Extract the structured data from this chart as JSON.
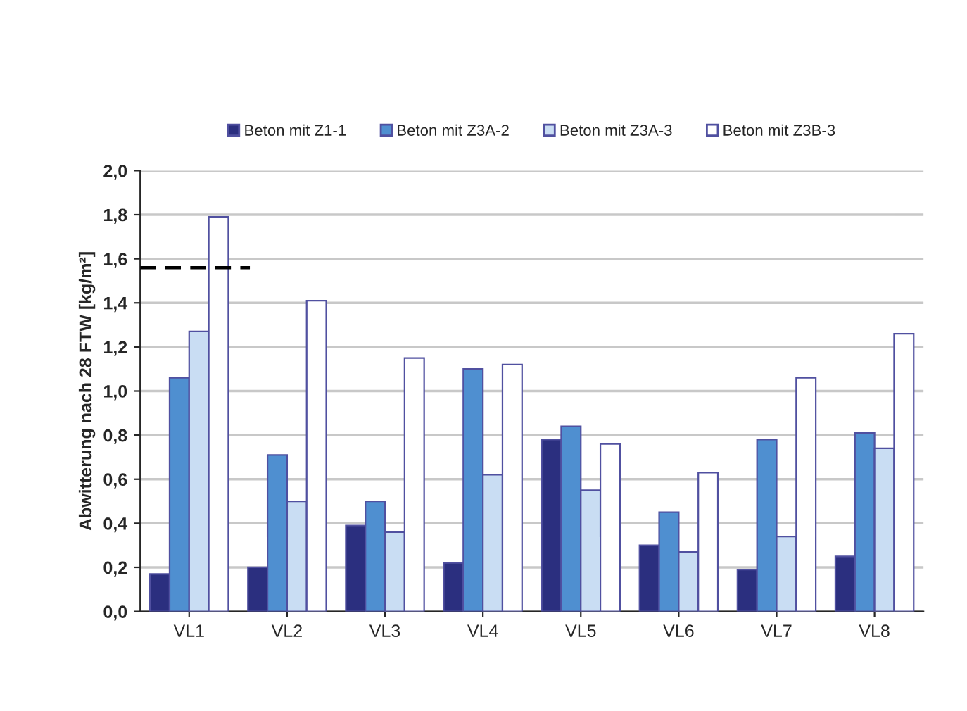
{
  "chart_data": {
    "type": "bar",
    "ylabel": "Abwitterung nach 28 FTW [kg/m²]",
    "categories": [
      "VL1",
      "VL2",
      "VL3",
      "VL4",
      "VL5",
      "VL6",
      "VL7",
      "VL8"
    ],
    "series": [
      {
        "name": "Beton mit Z1-1",
        "color": "#2b2f7f",
        "values": [
          0.17,
          0.2,
          0.39,
          0.22,
          0.78,
          0.3,
          0.19,
          0.25
        ]
      },
      {
        "name": "Beton mit Z3A-2",
        "color": "#4f8fd0",
        "values": [
          1.06,
          0.71,
          0.5,
          1.1,
          0.84,
          0.45,
          0.78,
          0.81
        ]
      },
      {
        "name": "Beton mit Z3A-3",
        "color": "#c9ddf3",
        "values": [
          1.27,
          0.5,
          0.36,
          0.62,
          0.55,
          0.27,
          0.34,
          0.74
        ]
      },
      {
        "name": "Beton mit Z3B-3",
        "color": "#ffffff",
        "values": [
          1.79,
          1.41,
          1.15,
          1.12,
          0.76,
          0.63,
          1.06,
          1.26
        ]
      }
    ],
    "ylim": [
      0,
      2
    ],
    "yticks": [
      {
        "value": 0,
        "label": "0,0"
      },
      {
        "value": 0.2,
        "label": "0,2"
      },
      {
        "value": 0.4,
        "label": "0,4"
      },
      {
        "value": 0.6,
        "label": "0,6"
      },
      {
        "value": 0.8,
        "label": "0,8"
      },
      {
        "value": 1.0,
        "label": "1,0"
      },
      {
        "value": 1.2,
        "label": "1,2"
      },
      {
        "value": 1.4,
        "label": "1,4"
      },
      {
        "value": 1.6,
        "label": "1,6"
      },
      {
        "value": 1.8,
        "label": "1,8"
      },
      {
        "value": 2.0,
        "label": "2,0"
      }
    ],
    "ref_lines": [
      {
        "axis": "y",
        "value": 1.56,
        "color": "#000000",
        "line_style": "dashed"
      }
    ],
    "grid": "y",
    "legend": "top"
  }
}
